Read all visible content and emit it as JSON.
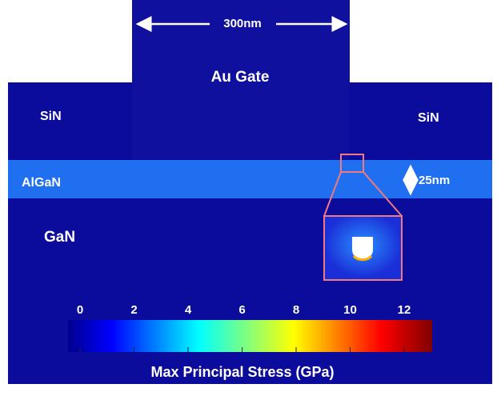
{
  "header": {
    "width_label": "300nm",
    "gate_label": "Au Gate"
  },
  "layers": {
    "sin_left": "SiN",
    "sin_right": "SiN",
    "algan": "AlGaN",
    "algan_thickness": "25nm",
    "gan": "GaN"
  },
  "colorbar": {
    "ticks": [
      0,
      2,
      4,
      6,
      8,
      10,
      12
    ],
    "title": "Max Principal Stress (GPa)"
  }
}
